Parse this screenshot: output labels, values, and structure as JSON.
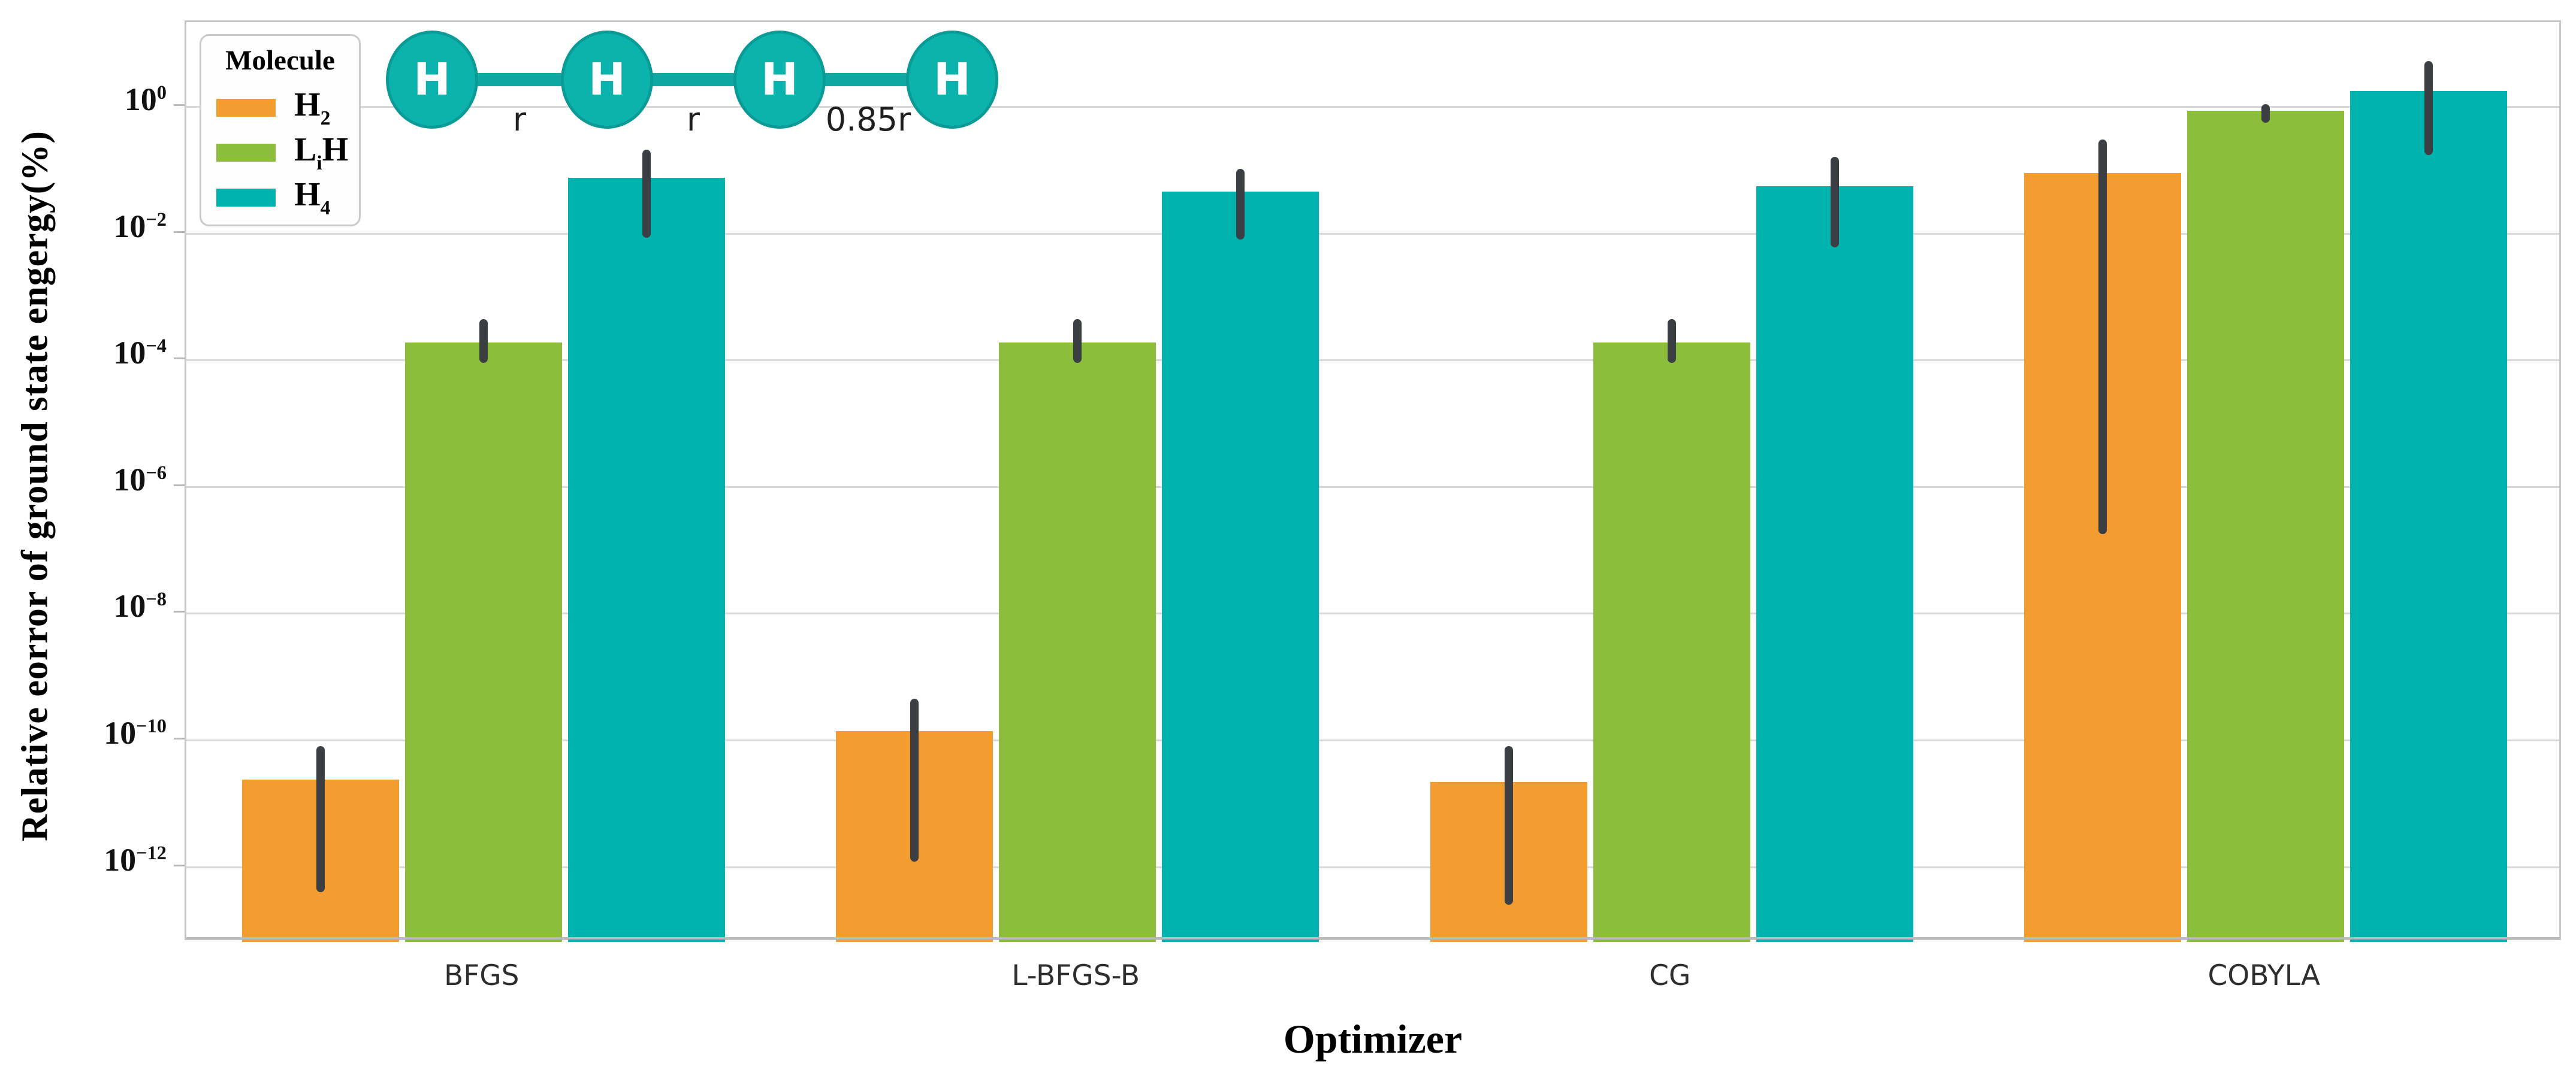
{
  "chart_data": {
    "type": "bar",
    "title": "",
    "xlabel": "Optimizer",
    "ylabel": "Relative eorror of ground state engergy(%)",
    "yscale": "log",
    "ylim": [
      1e-13,
      22
    ],
    "ytick_exponents": [
      0,
      -2,
      -4,
      -6,
      -8,
      -10,
      -12
    ],
    "grid": true,
    "categories": [
      "BFGS",
      "L-BFGS-B",
      "CG",
      "COBYLA"
    ],
    "legend": {
      "title": "Molecule",
      "position": "upper left",
      "labels": [
        [
          {
            "t": "H"
          },
          {
            "t": "2",
            "sub": true
          }
        ],
        [
          {
            "t": "L"
          },
          {
            "t": "i",
            "sub": true
          },
          {
            "t": "H"
          }
        ],
        [
          {
            "t": "H"
          },
          {
            "t": "4",
            "sub": true
          }
        ]
      ]
    },
    "series": [
      {
        "name": "H2",
        "color": "#F39C2F",
        "values": [
          2.4e-11,
          1.4e-10,
          2.2e-11,
          0.09
        ],
        "err_low": [
          4e-13,
          1.2e-12,
          2.5e-13,
          1.8e-07
        ],
        "err_high": [
          8e-11,
          4.5e-10,
          8e-11,
          0.3
        ]
      },
      {
        "name": "LiH",
        "color": "#8CBE3C",
        "values": [
          0.00019,
          0.00019,
          0.00019,
          0.85
        ],
        "err_low": [
          9e-05,
          9e-05,
          9e-05,
          0.55
        ],
        "err_high": [
          0.00044,
          0.00044,
          0.00044,
          1.1
        ]
      },
      {
        "name": "H4",
        "color": "#00B3AE",
        "values": [
          0.075,
          0.045,
          0.055,
          1.75
        ],
        "err_low": [
          0.0085,
          0.008,
          0.006,
          0.17
        ],
        "err_high": [
          0.21,
          0.105,
          0.16,
          5.2
        ]
      }
    ],
    "error_bar_color": "#3B3E42"
  },
  "molecule_diagram": {
    "atom_labels": [
      "H",
      "H",
      "H",
      "H"
    ],
    "bond_labels": [
      "r",
      "r",
      "0.85r"
    ],
    "atom_fill": "#0CB2AC",
    "atom_stroke": "#0A9B96",
    "bond_color": "#0FA7A2"
  }
}
